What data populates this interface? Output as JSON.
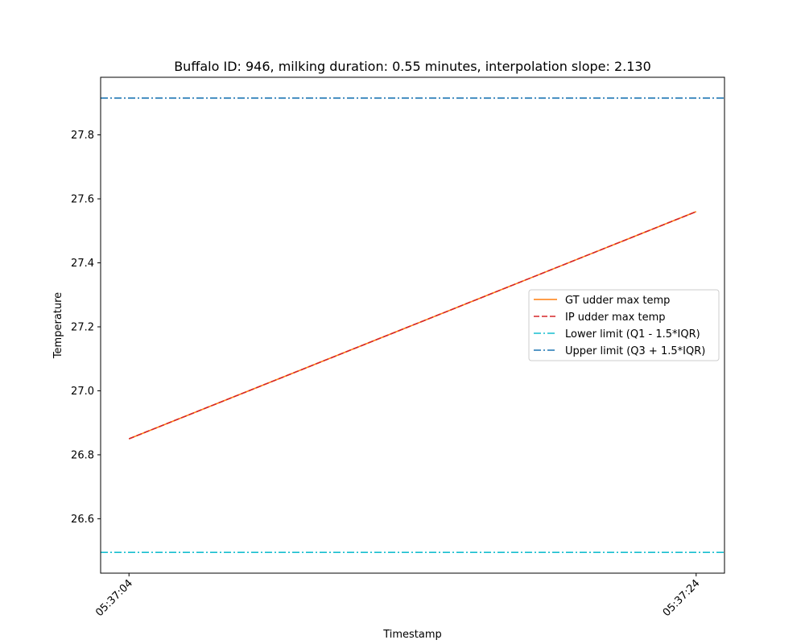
{
  "chart_data": {
    "type": "line",
    "title": "Buffalo ID: 946, milking duration: 0.55 minutes, interpolation slope: 2.130",
    "xlabel": "Timestamp",
    "ylabel": "Temperature",
    "x": [
      "05:37:04",
      "05:37:24"
    ],
    "x_numeric": [
      0,
      20
    ],
    "xlim": [
      -1.0,
      21.0
    ],
    "ylim": [
      26.43,
      27.98
    ],
    "yticks": [
      26.6,
      26.8,
      27.0,
      27.2,
      27.4,
      27.6,
      27.8
    ],
    "ytick_labels": [
      "26.6",
      "26.8",
      "27.0",
      "27.2",
      "27.4",
      "27.6",
      "27.8"
    ],
    "grid": false,
    "legend_position": "center-right",
    "series": [
      {
        "name": "GT udder max temp",
        "values": [
          26.85,
          27.56
        ],
        "color": "#ff7f0e",
        "style": "solid"
      },
      {
        "name": "IP udder max temp",
        "values": [
          26.85,
          27.56
        ],
        "color": "#d62728",
        "style": "dashed"
      }
    ],
    "hlines": [
      {
        "name": "Lower limit (Q1 - 1.5*IQR)",
        "value": 26.495,
        "color": "#17becf",
        "style": "dashdot"
      },
      {
        "name": "Upper limit (Q3 + 1.5*IQR)",
        "value": 27.915,
        "color": "#1f77b4",
        "style": "dashdot"
      }
    ]
  }
}
